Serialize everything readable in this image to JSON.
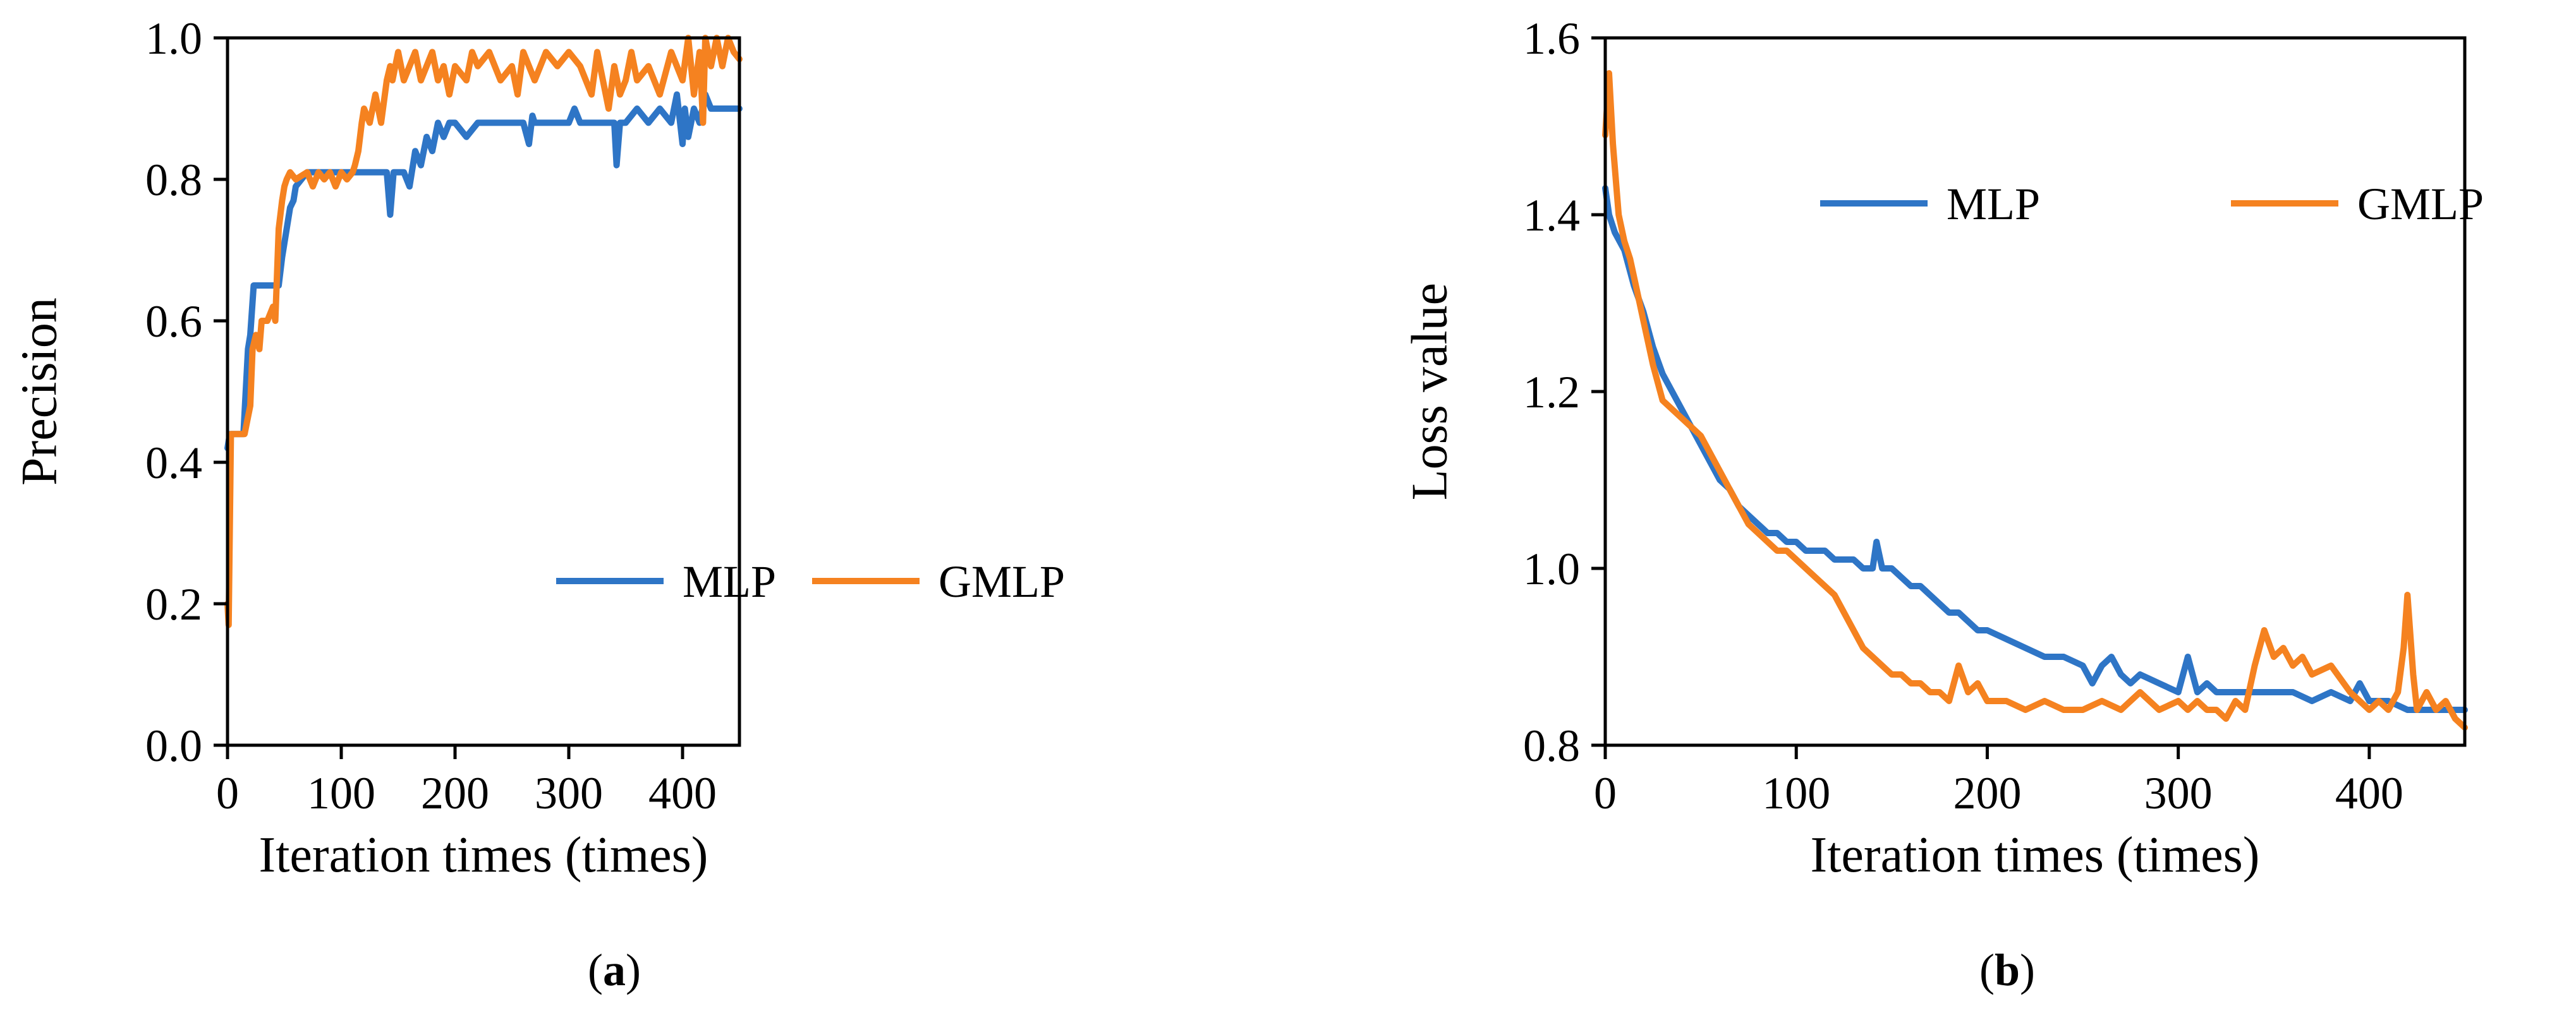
{
  "chart_data": [
    {
      "id": "a",
      "type": "line",
      "caption": {
        "open": "(",
        "letter": "a",
        "close": ")"
      },
      "xlabel": "Iteration times (times)",
      "ylabel": "Precision",
      "xlim": [
        0,
        450
      ],
      "ylim": [
        0,
        1.0
      ],
      "xticks": [
        0,
        100,
        200,
        300,
        400
      ],
      "xtick_labels": [
        "0",
        "100",
        "200",
        "300",
        "400"
      ],
      "yticks": [
        0,
        0.2,
        0.4,
        0.6,
        0.8,
        1.0
      ],
      "ytick_labels": [
        "0.0",
        "0.2",
        "0.4",
        "0.6",
        "0.8",
        "1.0"
      ],
      "grid": false,
      "legend_position": "center-right",
      "series": [
        {
          "name": "MLP",
          "color": "#2E75C6",
          "x": [
            0,
            2,
            5,
            10,
            14,
            18,
            20,
            23,
            28,
            35,
            45,
            48,
            52,
            55,
            58,
            60,
            65,
            70,
            75,
            80,
            90,
            100,
            110,
            120,
            130,
            140,
            143,
            146,
            150,
            155,
            160,
            165,
            170,
            175,
            180,
            185,
            190,
            195,
            200,
            210,
            220,
            230,
            240,
            250,
            260,
            265,
            268,
            270,
            280,
            290,
            300,
            305,
            310,
            320,
            330,
            340,
            342,
            345,
            350,
            360,
            370,
            380,
            390,
            395,
            400,
            402,
            405,
            410,
            415,
            420,
            425,
            430,
            440,
            450
          ],
          "y": [
            0.42,
            0.44,
            0.44,
            0.44,
            0.44,
            0.56,
            0.58,
            0.65,
            0.65,
            0.65,
            0.65,
            0.69,
            0.73,
            0.76,
            0.77,
            0.79,
            0.8,
            0.81,
            0.81,
            0.81,
            0.81,
            0.81,
            0.81,
            0.81,
            0.81,
            0.81,
            0.75,
            0.81,
            0.81,
            0.81,
            0.79,
            0.84,
            0.82,
            0.86,
            0.84,
            0.88,
            0.86,
            0.88,
            0.88,
            0.86,
            0.88,
            0.88,
            0.88,
            0.88,
            0.88,
            0.85,
            0.89,
            0.88,
            0.88,
            0.88,
            0.88,
            0.9,
            0.88,
            0.88,
            0.88,
            0.88,
            0.82,
            0.88,
            0.88,
            0.9,
            0.88,
            0.9,
            0.88,
            0.92,
            0.85,
            0.9,
            0.86,
            0.9,
            0.88,
            0.92,
            0.9,
            0.9,
            0.9,
            0.9
          ]
        },
        {
          "name": "GMLP",
          "color": "#F58220",
          "x": [
            0,
            1,
            3,
            5,
            8,
            15,
            20,
            22,
            25,
            28,
            30,
            35,
            40,
            42,
            45,
            48,
            50,
            52,
            55,
            60,
            70,
            75,
            80,
            85,
            90,
            95,
            100,
            105,
            110,
            112,
            115,
            118,
            120,
            125,
            130,
            135,
            140,
            143,
            145,
            150,
            155,
            160,
            165,
            170,
            175,
            180,
            185,
            190,
            195,
            200,
            210,
            215,
            220,
            230,
            240,
            250,
            255,
            260,
            265,
            270,
            280,
            290,
            300,
            310,
            320,
            325,
            330,
            335,
            340,
            345,
            350,
            355,
            360,
            370,
            380,
            390,
            400,
            405,
            410,
            415,
            418,
            420,
            425,
            430,
            435,
            440,
            445,
            450
          ],
          "y": [
            0.2,
            0.17,
            0.44,
            0.44,
            0.44,
            0.44,
            0.48,
            0.56,
            0.58,
            0.56,
            0.6,
            0.6,
            0.62,
            0.6,
            0.73,
            0.77,
            0.79,
            0.8,
            0.81,
            0.8,
            0.81,
            0.79,
            0.81,
            0.8,
            0.81,
            0.79,
            0.81,
            0.8,
            0.81,
            0.82,
            0.84,
            0.88,
            0.9,
            0.88,
            0.92,
            0.88,
            0.94,
            0.96,
            0.94,
            0.98,
            0.94,
            0.96,
            0.98,
            0.94,
            0.96,
            0.98,
            0.94,
            0.96,
            0.92,
            0.96,
            0.94,
            0.98,
            0.96,
            0.98,
            0.94,
            0.96,
            0.92,
            0.98,
            0.96,
            0.94,
            0.98,
            0.96,
            0.98,
            0.96,
            0.92,
            0.98,
            0.94,
            0.9,
            0.96,
            0.92,
            0.94,
            0.98,
            0.94,
            0.96,
            0.92,
            0.98,
            0.94,
            1.0,
            0.92,
            0.98,
            0.88,
            1.0,
            0.96,
            1.0,
            0.96,
            1.0,
            0.98,
            0.97
          ]
        }
      ]
    },
    {
      "id": "b",
      "type": "line",
      "caption": {
        "open": "(",
        "letter": "b",
        "close": ")"
      },
      "xlabel": "Iteration times (times)",
      "ylabel": "Loss value",
      "xlim": [
        0,
        450
      ],
      "ylim": [
        0.8,
        1.6
      ],
      "xticks": [
        0,
        100,
        200,
        300,
        400
      ],
      "xtick_labels": [
        "0",
        "100",
        "200",
        "300",
        "400"
      ],
      "yticks": [
        0.8,
        1.0,
        1.2,
        1.4,
        1.6
      ],
      "ytick_labels": [
        "0.8",
        "1.0",
        "1.2",
        "1.4",
        "1.6"
      ],
      "grid": false,
      "legend_position": "top-center",
      "series": [
        {
          "name": "MLP",
          "color": "#2E75C6",
          "x": [
            0,
            2,
            5,
            10,
            15,
            20,
            25,
            30,
            35,
            40,
            45,
            50,
            55,
            60,
            65,
            70,
            75,
            80,
            85,
            90,
            95,
            100,
            105,
            110,
            115,
            120,
            125,
            130,
            135,
            140,
            142,
            145,
            150,
            155,
            160,
            165,
            170,
            175,
            180,
            185,
            190,
            195,
            200,
            210,
            220,
            230,
            240,
            250,
            255,
            260,
            265,
            270,
            275,
            280,
            290,
            300,
            305,
            310,
            315,
            320,
            330,
            340,
            350,
            360,
            370,
            380,
            390,
            395,
            400,
            405,
            410,
            420,
            430,
            440,
            450
          ],
          "y": [
            1.43,
            1.4,
            1.38,
            1.36,
            1.32,
            1.29,
            1.25,
            1.22,
            1.2,
            1.18,
            1.16,
            1.14,
            1.12,
            1.1,
            1.09,
            1.07,
            1.06,
            1.05,
            1.04,
            1.04,
            1.03,
            1.03,
            1.02,
            1.02,
            1.02,
            1.01,
            1.01,
            1.01,
            1.0,
            1.0,
            1.03,
            1.0,
            1.0,
            0.99,
            0.98,
            0.98,
            0.97,
            0.96,
            0.95,
            0.95,
            0.94,
            0.93,
            0.93,
            0.92,
            0.91,
            0.9,
            0.9,
            0.89,
            0.87,
            0.89,
            0.9,
            0.88,
            0.87,
            0.88,
            0.87,
            0.86,
            0.9,
            0.86,
            0.87,
            0.86,
            0.86,
            0.86,
            0.86,
            0.86,
            0.85,
            0.86,
            0.85,
            0.87,
            0.85,
            0.85,
            0.85,
            0.84,
            0.84,
            0.84,
            0.84
          ]
        },
        {
          "name": "GMLP",
          "color": "#F58220",
          "x": [
            0,
            2,
            4,
            7,
            10,
            13,
            16,
            20,
            25,
            30,
            35,
            40,
            45,
            50,
            55,
            60,
            65,
            70,
            75,
            80,
            85,
            90,
            95,
            100,
            105,
            110,
            115,
            120,
            125,
            130,
            135,
            140,
            145,
            150,
            155,
            160,
            165,
            170,
            175,
            180,
            185,
            190,
            195,
            200,
            210,
            220,
            230,
            240,
            250,
            260,
            270,
            280,
            290,
            300,
            305,
            310,
            315,
            320,
            325,
            330,
            335,
            340,
            345,
            350,
            355,
            360,
            365,
            370,
            380,
            390,
            400,
            405,
            410,
            415,
            418,
            420,
            423,
            425,
            430,
            435,
            440,
            445,
            450
          ],
          "y": [
            1.49,
            1.56,
            1.48,
            1.4,
            1.37,
            1.35,
            1.32,
            1.28,
            1.23,
            1.19,
            1.18,
            1.17,
            1.16,
            1.15,
            1.13,
            1.11,
            1.09,
            1.07,
            1.05,
            1.04,
            1.03,
            1.02,
            1.02,
            1.01,
            1.0,
            0.99,
            0.98,
            0.97,
            0.95,
            0.93,
            0.91,
            0.9,
            0.89,
            0.88,
            0.88,
            0.87,
            0.87,
            0.86,
            0.86,
            0.85,
            0.89,
            0.86,
            0.87,
            0.85,
            0.85,
            0.84,
            0.85,
            0.84,
            0.84,
            0.85,
            0.84,
            0.86,
            0.84,
            0.85,
            0.84,
            0.85,
            0.84,
            0.84,
            0.83,
            0.85,
            0.84,
            0.89,
            0.93,
            0.9,
            0.91,
            0.89,
            0.9,
            0.88,
            0.89,
            0.86,
            0.84,
            0.85,
            0.84,
            0.86,
            0.91,
            0.97,
            0.88,
            0.84,
            0.86,
            0.84,
            0.85,
            0.83,
            0.82
          ]
        }
      ]
    }
  ]
}
